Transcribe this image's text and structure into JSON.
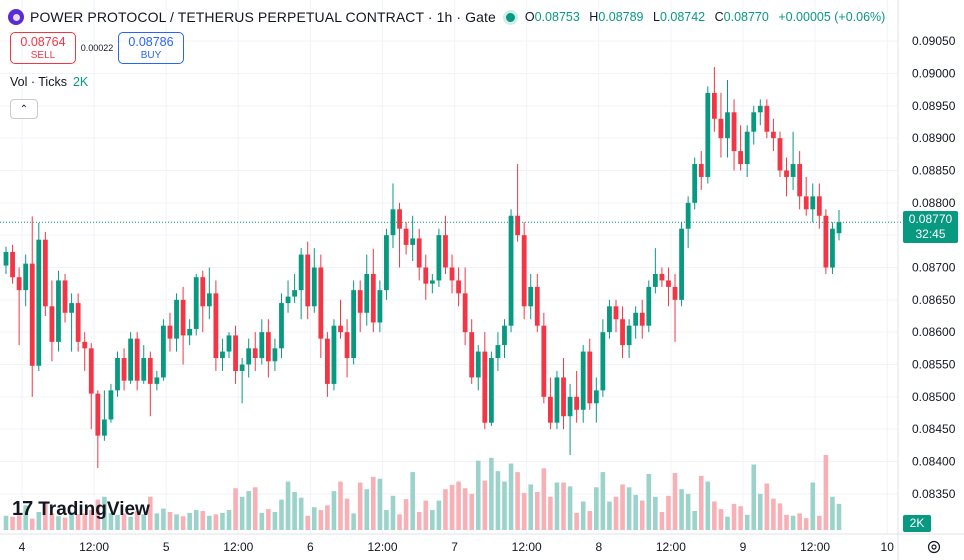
{
  "header": {
    "symbol": "POWER PROTOCOL / TETHERUS PERPETUAL CONTRACT · 1h · Gate",
    "ohlc": [
      {
        "k": "O",
        "v": "0.08753"
      },
      {
        "k": "H",
        "v": "0.08789"
      },
      {
        "k": "L",
        "v": "0.08742"
      },
      {
        "k": "C",
        "v": "0.08770"
      }
    ],
    "change": "+0.00005 (+0.06%)"
  },
  "trade": {
    "sell_price": "0.08764",
    "sell_label": "SELL",
    "spread": "0.00022",
    "buy_price": "0.08786",
    "buy_label": "BUY"
  },
  "volume_legend": {
    "label": "Vol · Ticks",
    "value": "2K"
  },
  "brand": {
    "name": "TradingView",
    "mark": "17"
  },
  "price_axis": {
    "ticks": [
      "0.09050",
      "0.09000",
      "0.08950",
      "0.08900",
      "0.08850",
      "0.08800",
      "0.08750",
      "0.08700",
      "0.08650",
      "0.08600",
      "0.08550",
      "0.08500",
      "0.08450",
      "0.08400",
      "0.08350"
    ],
    "current_price": "0.08770",
    "countdown": "32:45",
    "volume_tag": "2K"
  },
  "time_axis": {
    "labels": [
      "4",
      "12:00",
      "5",
      "12:00",
      "6",
      "12:00",
      "7",
      "12:00",
      "8",
      "12:00",
      "9",
      "12:00",
      "10"
    ]
  },
  "colors": {
    "up": "#089981",
    "down": "#f23645",
    "up_volume": "#9bd3cb",
    "down_volume": "#f7b1b6",
    "brand_icon": "#5b2bd6"
  },
  "icons": {
    "collapse": "chevron-up-icon",
    "settings": "gear-icon",
    "symbol_logo": "power-protocol-logo-icon"
  },
  "chart_data": {
    "type": "candlestick",
    "timeframe": "1h",
    "ylim": [
      0.08325,
      0.09075
    ],
    "grid": true,
    "last_price": 0.0877,
    "candles": [
      {
        "o": 0.08703,
        "h": 0.08732,
        "l": 0.0869,
        "c": 0.08724
      },
      {
        "o": 0.08724,
        "h": 0.08735,
        "l": 0.08675,
        "c": 0.08685
      },
      {
        "o": 0.08685,
        "h": 0.087,
        "l": 0.0858,
        "c": 0.08665
      },
      {
        "o": 0.08665,
        "h": 0.0872,
        "l": 0.0864,
        "c": 0.08706
      },
      {
        "o": 0.08706,
        "h": 0.08779,
        "l": 0.085,
        "c": 0.08548
      },
      {
        "o": 0.08548,
        "h": 0.08769,
        "l": 0.0854,
        "c": 0.08743
      },
      {
        "o": 0.08743,
        "h": 0.08755,
        "l": 0.08625,
        "c": 0.0864
      },
      {
        "o": 0.0864,
        "h": 0.0868,
        "l": 0.08555,
        "c": 0.08585
      },
      {
        "o": 0.08585,
        "h": 0.08695,
        "l": 0.0857,
        "c": 0.0868
      },
      {
        "o": 0.0868,
        "h": 0.0869,
        "l": 0.08615,
        "c": 0.0863
      },
      {
        "o": 0.0863,
        "h": 0.0866,
        "l": 0.0857,
        "c": 0.08645
      },
      {
        "o": 0.08645,
        "h": 0.0866,
        "l": 0.0857,
        "c": 0.08585
      },
      {
        "o": 0.08585,
        "h": 0.086,
        "l": 0.0854,
        "c": 0.08575
      },
      {
        "o": 0.08575,
        "h": 0.08583,
        "l": 0.0845,
        "c": 0.08505
      },
      {
        "o": 0.08505,
        "h": 0.0851,
        "l": 0.0839,
        "c": 0.0844
      },
      {
        "o": 0.0844,
        "h": 0.0851,
        "l": 0.08432,
        "c": 0.08465
      },
      {
        "o": 0.08465,
        "h": 0.0852,
        "l": 0.0846,
        "c": 0.0851
      },
      {
        "o": 0.0851,
        "h": 0.0857,
        "l": 0.085,
        "c": 0.0856
      },
      {
        "o": 0.0856,
        "h": 0.08575,
        "l": 0.0851,
        "c": 0.08525
      },
      {
        "o": 0.08525,
        "h": 0.086,
        "l": 0.0852,
        "c": 0.0859
      },
      {
        "o": 0.0859,
        "h": 0.086,
        "l": 0.0851,
        "c": 0.08525
      },
      {
        "o": 0.08525,
        "h": 0.0858,
        "l": 0.0852,
        "c": 0.0856
      },
      {
        "o": 0.0856,
        "h": 0.0857,
        "l": 0.0847,
        "c": 0.0852
      },
      {
        "o": 0.0852,
        "h": 0.0854,
        "l": 0.0851,
        "c": 0.0853
      },
      {
        "o": 0.0853,
        "h": 0.0862,
        "l": 0.08525,
        "c": 0.0861
      },
      {
        "o": 0.0861,
        "h": 0.0863,
        "l": 0.0857,
        "c": 0.0859
      },
      {
        "o": 0.0859,
        "h": 0.0866,
        "l": 0.0857,
        "c": 0.0865
      },
      {
        "o": 0.0865,
        "h": 0.0867,
        "l": 0.0855,
        "c": 0.08595
      },
      {
        "o": 0.08595,
        "h": 0.0862,
        "l": 0.0858,
        "c": 0.08605
      },
      {
        "o": 0.08605,
        "h": 0.0869,
        "l": 0.08595,
        "c": 0.08685
      },
      {
        "o": 0.08685,
        "h": 0.08695,
        "l": 0.086,
        "c": 0.0864
      },
      {
        "o": 0.0864,
        "h": 0.087,
        "l": 0.0862,
        "c": 0.0866
      },
      {
        "o": 0.0866,
        "h": 0.0868,
        "l": 0.0854,
        "c": 0.0856
      },
      {
        "o": 0.0856,
        "h": 0.0859,
        "l": 0.0854,
        "c": 0.0857
      },
      {
        "o": 0.0857,
        "h": 0.086,
        "l": 0.0856,
        "c": 0.08595
      },
      {
        "o": 0.08595,
        "h": 0.0861,
        "l": 0.0852,
        "c": 0.0854
      },
      {
        "o": 0.0854,
        "h": 0.0856,
        "l": 0.0849,
        "c": 0.0855
      },
      {
        "o": 0.0855,
        "h": 0.0859,
        "l": 0.0853,
        "c": 0.08575
      },
      {
        "o": 0.08575,
        "h": 0.086,
        "l": 0.0854,
        "c": 0.0856
      },
      {
        "o": 0.0856,
        "h": 0.0862,
        "l": 0.0855,
        "c": 0.086
      },
      {
        "o": 0.086,
        "h": 0.0862,
        "l": 0.0853,
        "c": 0.08555
      },
      {
        "o": 0.08555,
        "h": 0.0859,
        "l": 0.0854,
        "c": 0.08575
      },
      {
        "o": 0.08575,
        "h": 0.0866,
        "l": 0.0856,
        "c": 0.08645
      },
      {
        "o": 0.08645,
        "h": 0.0868,
        "l": 0.0863,
        "c": 0.08655
      },
      {
        "o": 0.08655,
        "h": 0.0869,
        "l": 0.08645,
        "c": 0.08665
      },
      {
        "o": 0.08665,
        "h": 0.0873,
        "l": 0.0862,
        "c": 0.0872
      },
      {
        "o": 0.0872,
        "h": 0.0874,
        "l": 0.0862,
        "c": 0.0864
      },
      {
        "o": 0.0864,
        "h": 0.0873,
        "l": 0.0863,
        "c": 0.087
      },
      {
        "o": 0.087,
        "h": 0.0872,
        "l": 0.0856,
        "c": 0.0859
      },
      {
        "o": 0.0859,
        "h": 0.086,
        "l": 0.085,
        "c": 0.0852
      },
      {
        "o": 0.0852,
        "h": 0.0862,
        "l": 0.0851,
        "c": 0.0861
      },
      {
        "o": 0.0861,
        "h": 0.0865,
        "l": 0.0859,
        "c": 0.086
      },
      {
        "o": 0.086,
        "h": 0.0862,
        "l": 0.0853,
        "c": 0.0856
      },
      {
        "o": 0.0856,
        "h": 0.0868,
        "l": 0.0855,
        "c": 0.08665
      },
      {
        "o": 0.08665,
        "h": 0.0868,
        "l": 0.086,
        "c": 0.0863
      },
      {
        "o": 0.0863,
        "h": 0.0872,
        "l": 0.0861,
        "c": 0.0869
      },
      {
        "o": 0.0869,
        "h": 0.08729,
        "l": 0.086,
        "c": 0.08615
      },
      {
        "o": 0.08615,
        "h": 0.0868,
        "l": 0.086,
        "c": 0.08665
      },
      {
        "o": 0.08665,
        "h": 0.0876,
        "l": 0.0865,
        "c": 0.0875
      },
      {
        "o": 0.0875,
        "h": 0.0883,
        "l": 0.0873,
        "c": 0.0879
      },
      {
        "o": 0.0879,
        "h": 0.088,
        "l": 0.087,
        "c": 0.0876
      },
      {
        "o": 0.0876,
        "h": 0.0877,
        "l": 0.0872,
        "c": 0.08735
      },
      {
        "o": 0.08735,
        "h": 0.0878,
        "l": 0.0871,
        "c": 0.08745
      },
      {
        "o": 0.08745,
        "h": 0.0876,
        "l": 0.0868,
        "c": 0.087
      },
      {
        "o": 0.087,
        "h": 0.0872,
        "l": 0.0865,
        "c": 0.08675
      },
      {
        "o": 0.08675,
        "h": 0.0869,
        "l": 0.0866,
        "c": 0.0868
      },
      {
        "o": 0.0868,
        "h": 0.0876,
        "l": 0.0867,
        "c": 0.0875
      },
      {
        "o": 0.0875,
        "h": 0.0878,
        "l": 0.0869,
        "c": 0.087
      },
      {
        "o": 0.087,
        "h": 0.0872,
        "l": 0.0866,
        "c": 0.0868
      },
      {
        "o": 0.0868,
        "h": 0.087,
        "l": 0.0864,
        "c": 0.0866
      },
      {
        "o": 0.0866,
        "h": 0.087,
        "l": 0.0858,
        "c": 0.086
      },
      {
        "o": 0.086,
        "h": 0.0862,
        "l": 0.0852,
        "c": 0.0853
      },
      {
        "o": 0.0853,
        "h": 0.0858,
        "l": 0.0851,
        "c": 0.0857
      },
      {
        "o": 0.0857,
        "h": 0.086,
        "l": 0.0845,
        "c": 0.0846
      },
      {
        "o": 0.0846,
        "h": 0.0857,
        "l": 0.08455,
        "c": 0.0856
      },
      {
        "o": 0.0856,
        "h": 0.086,
        "l": 0.0854,
        "c": 0.0858
      },
      {
        "o": 0.0858,
        "h": 0.0862,
        "l": 0.0856,
        "c": 0.0861
      },
      {
        "o": 0.0861,
        "h": 0.0879,
        "l": 0.086,
        "c": 0.0878
      },
      {
        "o": 0.0878,
        "h": 0.0886,
        "l": 0.0874,
        "c": 0.0875
      },
      {
        "o": 0.0875,
        "h": 0.0877,
        "l": 0.0862,
        "c": 0.0864
      },
      {
        "o": 0.0864,
        "h": 0.0869,
        "l": 0.0862,
        "c": 0.0867
      },
      {
        "o": 0.0867,
        "h": 0.0869,
        "l": 0.086,
        "c": 0.0861
      },
      {
        "o": 0.0861,
        "h": 0.0863,
        "l": 0.0849,
        "c": 0.085
      },
      {
        "o": 0.085,
        "h": 0.0853,
        "l": 0.0845,
        "c": 0.0846
      },
      {
        "o": 0.0846,
        "h": 0.0854,
        "l": 0.0845,
        "c": 0.0853
      },
      {
        "o": 0.0853,
        "h": 0.0856,
        "l": 0.0845,
        "c": 0.0847
      },
      {
        "o": 0.0847,
        "h": 0.0852,
        "l": 0.0841,
        "c": 0.085
      },
      {
        "o": 0.085,
        "h": 0.0854,
        "l": 0.0846,
        "c": 0.0848
      },
      {
        "o": 0.0848,
        "h": 0.0858,
        "l": 0.0846,
        "c": 0.0857
      },
      {
        "o": 0.0857,
        "h": 0.0859,
        "l": 0.0848,
        "c": 0.0849
      },
      {
        "o": 0.0849,
        "h": 0.0853,
        "l": 0.0846,
        "c": 0.0851
      },
      {
        "o": 0.0851,
        "h": 0.0862,
        "l": 0.085,
        "c": 0.086
      },
      {
        "o": 0.086,
        "h": 0.0865,
        "l": 0.0859,
        "c": 0.0864
      },
      {
        "o": 0.0864,
        "h": 0.0865,
        "l": 0.086,
        "c": 0.0862
      },
      {
        "o": 0.0862,
        "h": 0.0864,
        "l": 0.0856,
        "c": 0.0858
      },
      {
        "o": 0.0858,
        "h": 0.0862,
        "l": 0.0856,
        "c": 0.0861
      },
      {
        "o": 0.0861,
        "h": 0.0864,
        "l": 0.0859,
        "c": 0.0863
      },
      {
        "o": 0.0863,
        "h": 0.0865,
        "l": 0.0859,
        "c": 0.0861
      },
      {
        "o": 0.0861,
        "h": 0.0868,
        "l": 0.086,
        "c": 0.0867
      },
      {
        "o": 0.0867,
        "h": 0.0873,
        "l": 0.0866,
        "c": 0.0869
      },
      {
        "o": 0.0869,
        "h": 0.087,
        "l": 0.0867,
        "c": 0.0868
      },
      {
        "o": 0.0868,
        "h": 0.087,
        "l": 0.0864,
        "c": 0.0867
      },
      {
        "o": 0.0867,
        "h": 0.0869,
        "l": 0.08585,
        "c": 0.0865
      },
      {
        "o": 0.0865,
        "h": 0.0877,
        "l": 0.0864,
        "c": 0.0876
      },
      {
        "o": 0.0876,
        "h": 0.0881,
        "l": 0.0873,
        "c": 0.088
      },
      {
        "o": 0.088,
        "h": 0.0887,
        "l": 0.0879,
        "c": 0.0886
      },
      {
        "o": 0.0886,
        "h": 0.0888,
        "l": 0.0882,
        "c": 0.0884
      },
      {
        "o": 0.0884,
        "h": 0.0898,
        "l": 0.0883,
        "c": 0.0897
      },
      {
        "o": 0.0897,
        "h": 0.0901,
        "l": 0.0891,
        "c": 0.0893
      },
      {
        "o": 0.0893,
        "h": 0.0897,
        "l": 0.0887,
        "c": 0.089
      },
      {
        "o": 0.089,
        "h": 0.0899,
        "l": 0.0887,
        "c": 0.0894
      },
      {
        "o": 0.0894,
        "h": 0.0896,
        "l": 0.0885,
        "c": 0.0888
      },
      {
        "o": 0.0888,
        "h": 0.0892,
        "l": 0.0885,
        "c": 0.0886
      },
      {
        "o": 0.0886,
        "h": 0.0892,
        "l": 0.0884,
        "c": 0.0891
      },
      {
        "o": 0.0891,
        "h": 0.0895,
        "l": 0.0889,
        "c": 0.0894
      },
      {
        "o": 0.0894,
        "h": 0.0896,
        "l": 0.0892,
        "c": 0.0895
      },
      {
        "o": 0.0895,
        "h": 0.0896,
        "l": 0.089,
        "c": 0.0891
      },
      {
        "o": 0.0891,
        "h": 0.0893,
        "l": 0.0888,
        "c": 0.089
      },
      {
        "o": 0.089,
        "h": 0.0891,
        "l": 0.0884,
        "c": 0.0885
      },
      {
        "o": 0.0885,
        "h": 0.0887,
        "l": 0.0881,
        "c": 0.0884
      },
      {
        "o": 0.0884,
        "h": 0.0891,
        "l": 0.0882,
        "c": 0.0886
      },
      {
        "o": 0.0886,
        "h": 0.0888,
        "l": 0.0879,
        "c": 0.0881
      },
      {
        "o": 0.0881,
        "h": 0.0884,
        "l": 0.0878,
        "c": 0.0879
      },
      {
        "o": 0.0879,
        "h": 0.0883,
        "l": 0.0877,
        "c": 0.0881
      },
      {
        "o": 0.0881,
        "h": 0.0883,
        "l": 0.0876,
        "c": 0.0878
      },
      {
        "o": 0.0878,
        "h": 0.0879,
        "l": 0.0869,
        "c": 0.087
      },
      {
        "o": 0.087,
        "h": 0.0877,
        "l": 0.0869,
        "c": 0.0876
      },
      {
        "o": 0.08753,
        "h": 0.08789,
        "l": 0.08742,
        "c": 0.0877
      }
    ],
    "volume": [
      300,
      280,
      310,
      520,
      240,
      380,
      600,
      350,
      290,
      260,
      380,
      330,
      350,
      420,
      640,
      700,
      360,
      320,
      350,
      280,
      400,
      330,
      700,
      350,
      450,
      380,
      330,
      290,
      360,
      420,
      400,
      300,
      330,
      360,
      420,
      880,
      700,
      820,
      900,
      360,
      440,
      380,
      640,
      1020,
      800,
      680,
      300,
      480,
      420,
      520,
      820,
      1020,
      660,
      350,
      1000,
      860,
      1120,
      1080,
      420,
      720,
      330,
      650,
      1220,
      380,
      620,
      420,
      620,
      860,
      950,
      1020,
      880,
      760,
      1460,
      1040,
      1520,
      1240,
      1020,
      1400,
      1220,
      780,
      960,
      800,
      1300,
      700,
      1000,
      1000,
      920,
      360,
      600,
      400,
      900,
      1220,
      600,
      700,
      960,
      900,
      740,
      620,
      1180,
      700,
      380,
      720,
      1200,
      860,
      760,
      400,
      1140,
      1020,
      600,
      440,
      280,
      550,
      500,
      320,
      1380,
      760,
      980,
      660,
      560,
      320,
      300,
      350,
      250,
      1000,
      300,
      1580,
      700,
      550,
      480,
      320,
      900,
      360,
      1240,
      700,
      500
    ]
  }
}
